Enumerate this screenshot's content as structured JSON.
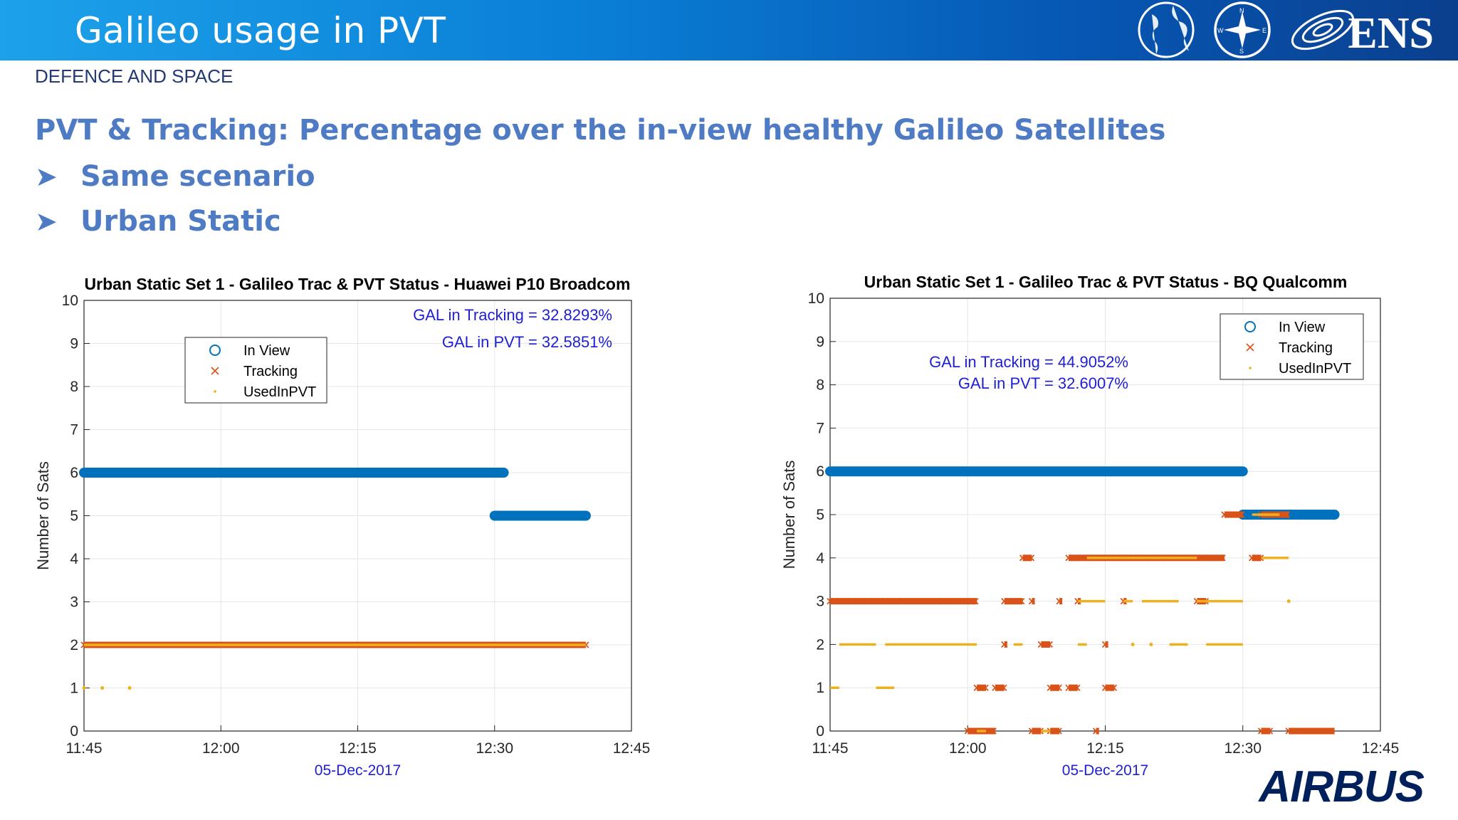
{
  "header": {
    "title": "Galileo usage in PVT",
    "logo_text": "ENS",
    "logo_icons": [
      "globe-icon",
      "compass-icon",
      "galaxy-icon"
    ]
  },
  "subheading": "DEFENCE AND SPACE",
  "main_title": "PVT & Tracking: Percentage over the in-view healthy Galileo Satellites",
  "bullets": [
    "Same scenario",
    "Urban Static"
  ],
  "footer_logo": "AIRBUS",
  "chart_data": [
    {
      "type": "scatter",
      "title": "Urban Static Set 1 - Galileo Trac & PVT Status - Huawei P10 Broadcom",
      "ylabel": "Number of Sats",
      "xlabel": "05-Dec-2017",
      "ylim": [
        0,
        10
      ],
      "yticks": [
        "0",
        "1",
        "2",
        "3",
        "4",
        "5",
        "6",
        "7",
        "8",
        "9",
        "10"
      ],
      "xticks": [
        "11:45",
        "12:00",
        "12:15",
        "12:30",
        "12:45"
      ],
      "grid": true,
      "legend": {
        "position": "top-left",
        "entries": [
          "In View",
          "Tracking",
          "UsedInPVT"
        ]
      },
      "annotations": [
        "GAL in Tracking = 32.8293%",
        "GAL in PVT = 32.5851%"
      ],
      "series": [
        {
          "name": "In View",
          "marker": "circle",
          "color": "#0072bd",
          "segments": [
            {
              "y": 6,
              "x": [
                "11:45",
                "12:31"
              ]
            },
            {
              "y": 5,
              "x": [
                "12:30",
                "12:40"
              ]
            }
          ]
        },
        {
          "name": "Tracking",
          "marker": "x",
          "color": "#d95319",
          "segments": [
            {
              "y": 2,
              "x": [
                "11:45",
                "12:40"
              ]
            }
          ]
        },
        {
          "name": "UsedInPVT",
          "marker": "dot",
          "color": "#edb120",
          "segments": [
            {
              "y": 2,
              "x": [
                "11:45",
                "12:40"
              ]
            }
          ],
          "points": [
            {
              "y": 1,
              "x": "11:45"
            },
            {
              "y": 1,
              "x": "11:47"
            },
            {
              "y": 1,
              "x": "11:50"
            }
          ]
        }
      ]
    },
    {
      "type": "scatter",
      "title": "Urban Static Set 1 - Galileo Trac & PVT Status - BQ Qualcomm",
      "ylabel": "Number of Sats",
      "xlabel": "05-Dec-2017",
      "ylim": [
        0,
        10
      ],
      "yticks": [
        "0",
        "1",
        "2",
        "3",
        "4",
        "5",
        "6",
        "7",
        "8",
        "9",
        "10"
      ],
      "xticks": [
        "11:45",
        "12:00",
        "12:15",
        "12:30",
        "12:45"
      ],
      "grid": true,
      "legend": {
        "position": "top-right",
        "entries": [
          "In View",
          "Tracking",
          "UsedInPVT"
        ]
      },
      "annotations": [
        "GAL in Tracking = 44.9052%",
        "GAL in PVT = 32.6007%"
      ],
      "series": [
        {
          "name": "In View",
          "marker": "circle",
          "color": "#0072bd",
          "segments": [
            {
              "y": 6,
              "x": [
                "11:45",
                "12:30"
              ]
            },
            {
              "y": 5,
              "x": [
                "12:30",
                "12:40"
              ]
            }
          ]
        },
        {
          "name": "Tracking",
          "marker": "x",
          "color": "#d95319",
          "segments": [
            {
              "y": 3,
              "x": [
                "11:45",
                "12:01"
              ]
            },
            {
              "y": 3,
              "x": [
                "12:04",
                "12:06"
              ]
            },
            {
              "y": 3,
              "x": [
                "12:07",
                "12:07"
              ]
            },
            {
              "y": 3,
              "x": [
                "12:10",
                "12:10"
              ]
            },
            {
              "y": 3,
              "x": [
                "12:12",
                "12:12"
              ]
            },
            {
              "y": 3,
              "x": [
                "12:17",
                "12:17"
              ]
            },
            {
              "y": 3,
              "x": [
                "12:25",
                "12:26"
              ]
            },
            {
              "y": 4,
              "x": [
                "12:06",
                "12:07"
              ]
            },
            {
              "y": 4,
              "x": [
                "12:11",
                "12:28"
              ]
            },
            {
              "y": 4,
              "x": [
                "12:31",
                "12:32"
              ]
            },
            {
              "y": 5,
              "x": [
                "12:28",
                "12:30"
              ]
            },
            {
              "y": 5,
              "x": [
                "12:32",
                "12:35"
              ]
            },
            {
              "y": 2,
              "x": [
                "12:04",
                "12:04"
              ]
            },
            {
              "y": 2,
              "x": [
                "12:08",
                "12:09"
              ]
            },
            {
              "y": 2,
              "x": [
                "12:15",
                "12:15"
              ]
            },
            {
              "y": 1,
              "x": [
                "12:01",
                "12:02"
              ]
            },
            {
              "y": 1,
              "x": [
                "12:03",
                "12:04"
              ]
            },
            {
              "y": 1,
              "x": [
                "12:09",
                "12:10"
              ]
            },
            {
              "y": 1,
              "x": [
                "12:11",
                "12:12"
              ]
            },
            {
              "y": 1,
              "x": [
                "12:15",
                "12:16"
              ]
            },
            {
              "y": 0,
              "x": [
                "12:00",
                "12:03"
              ]
            },
            {
              "y": 0,
              "x": [
                "12:07",
                "12:08"
              ]
            },
            {
              "y": 0,
              "x": [
                "12:09",
                "12:10"
              ]
            },
            {
              "y": 0,
              "x": [
                "12:14",
                "12:14"
              ]
            },
            {
              "y": 0,
              "x": [
                "12:32",
                "12:33"
              ]
            },
            {
              "y": 0,
              "x": [
                "12:35",
                "12:40"
              ]
            }
          ]
        },
        {
          "name": "UsedInPVT",
          "marker": "dot",
          "color": "#edb120",
          "segments": [
            {
              "y": 1,
              "x": [
                "11:45",
                "11:46"
              ]
            },
            {
              "y": 1,
              "x": [
                "11:50",
                "11:52"
              ]
            },
            {
              "y": 2,
              "x": [
                "11:46",
                "11:50"
              ]
            },
            {
              "y": 2,
              "x": [
                "11:51",
                "12:01"
              ]
            },
            {
              "y": 2,
              "x": [
                "12:05",
                "12:06"
              ]
            },
            {
              "y": 2,
              "x": [
                "12:12",
                "12:13"
              ]
            },
            {
              "y": 2,
              "x": [
                "12:22",
                "12:24"
              ]
            },
            {
              "y": 2,
              "x": [
                "12:26",
                "12:30"
              ]
            },
            {
              "y": 3,
              "x": [
                "12:12",
                "12:15"
              ]
            },
            {
              "y": 3,
              "x": [
                "12:17",
                "12:18"
              ]
            },
            {
              "y": 3,
              "x": [
                "12:19",
                "12:23"
              ]
            },
            {
              "y": 3,
              "x": [
                "12:25",
                "12:30"
              ]
            },
            {
              "y": 4,
              "x": [
                "12:13",
                "12:25"
              ]
            },
            {
              "y": 4,
              "x": [
                "12:32",
                "12:35"
              ]
            },
            {
              "y": 5,
              "x": [
                "12:31",
                "12:34"
              ]
            },
            {
              "y": 0,
              "x": [
                "12:01",
                "12:02"
              ]
            },
            {
              "y": 0,
              "x": [
                "12:08",
                "12:09"
              ]
            }
          ],
          "points": [
            {
              "y": 2,
              "x": "12:18"
            },
            {
              "y": 2,
              "x": "12:20"
            },
            {
              "y": 3,
              "x": "12:35"
            }
          ]
        }
      ]
    }
  ]
}
